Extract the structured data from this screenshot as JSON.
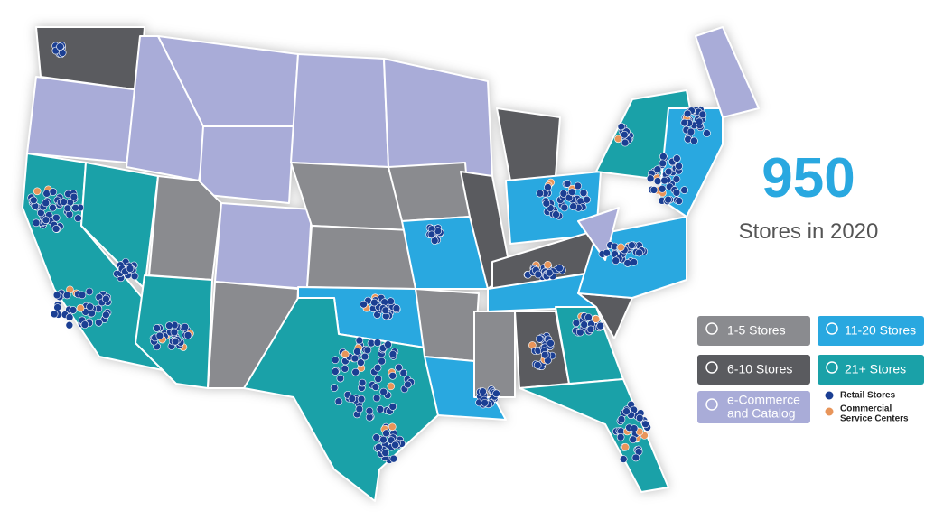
{
  "headline": {
    "count": "950",
    "subtitle": "Stores in 2020"
  },
  "legend": {
    "tiers": [
      {
        "label": "1-5 Stores"
      },
      {
        "label": "11-20 Stores"
      },
      {
        "label": "6-10 Stores"
      },
      {
        "label": "21+ Stores"
      },
      {
        "label_lines": [
          "e-Commerce",
          "and Catalog"
        ]
      }
    ],
    "markers": [
      {
        "label": "Retail Stores"
      },
      {
        "label_lines": [
          "Commercial",
          "Service Centers"
        ]
      }
    ]
  }
}
